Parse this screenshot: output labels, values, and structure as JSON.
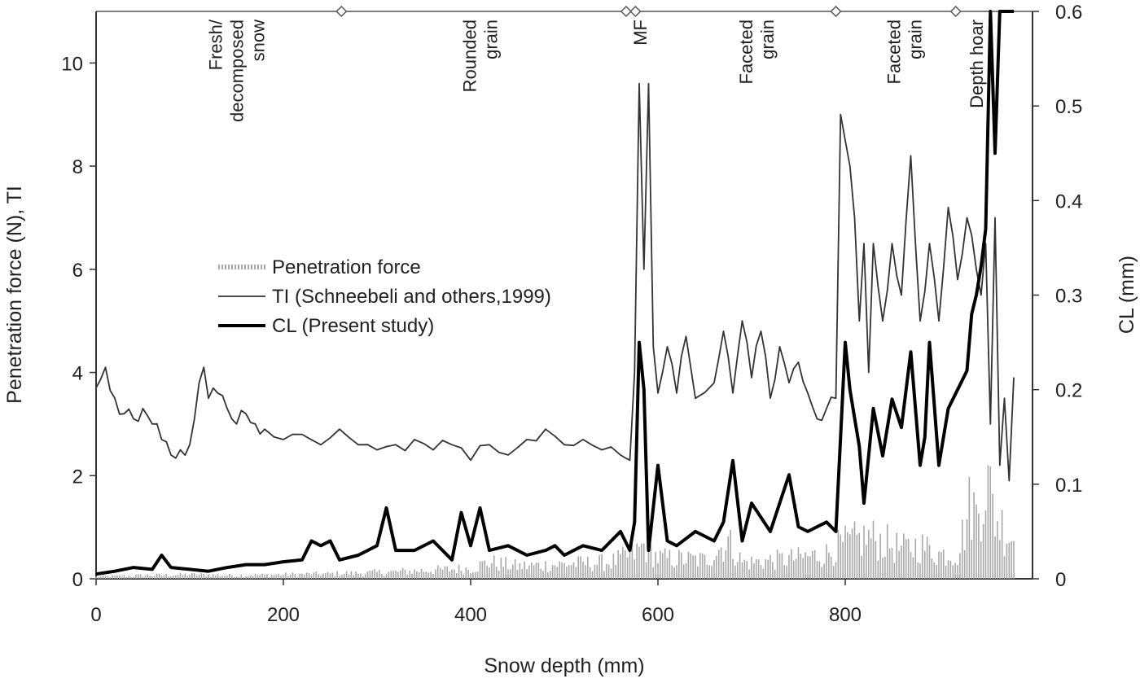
{
  "chart_data": {
    "type": "line",
    "title": "",
    "xlabel": "Snow depth (mm)",
    "ylabel_left": "Penetration force (N), TI",
    "ylabel_right": "CL (mm)",
    "xlim": [
      0,
      1000
    ],
    "ylim_left": [
      0,
      11
    ],
    "ylim_right": [
      0,
      0.6
    ],
    "x_ticks": [
      0,
      200,
      400,
      600,
      800
    ],
    "y_left_ticks": [
      0,
      2,
      4,
      6,
      8,
      10
    ],
    "y_right_ticks": [
      "0",
      "0.1",
      "0.2",
      "0.3",
      "0.4",
      "0.5",
      "0.6"
    ],
    "grid": false,
    "legend_position": "center-left",
    "layer_boundaries": [
      262,
      566,
      576,
      790,
      918
    ],
    "layer_labels": [
      {
        "lines": [
          "Fresh/",
          "decomposed",
          "snow"
        ],
        "x": 150
      },
      {
        "lines": [
          "Rounded",
          "grain"
        ],
        "x": 410
      },
      {
        "lines": [
          "MF"
        ],
        "x": 581
      },
      {
        "lines": [
          "Faceted",
          "grain"
        ],
        "x": 705
      },
      {
        "lines": [
          "Faceted",
          "grain"
        ],
        "x": 863
      },
      {
        "lines": [
          "Depth hoar"
        ],
        "x": 940
      }
    ],
    "series": [
      {
        "name": "Penetration force",
        "axis": "left",
        "color": "#a8a8a8",
        "style": "dense-bars",
        "x": [
          0,
          50,
          100,
          150,
          200,
          250,
          300,
          350,
          400,
          420,
          450,
          500,
          550,
          575,
          585,
          600,
          650,
          675,
          690,
          700,
          750,
          780,
          795,
          810,
          825,
          840,
          860,
          880,
          900,
          920,
          935,
          940,
          950,
          960,
          970,
          980
        ],
        "y": [
          0.05,
          0.08,
          0.1,
          0.08,
          0.1,
          0.12,
          0.15,
          0.2,
          0.25,
          0.4,
          0.3,
          0.35,
          0.4,
          0.6,
          0.8,
          0.5,
          0.45,
          0.9,
          0.4,
          0.4,
          0.5,
          0.6,
          0.8,
          0.9,
          1.0,
          0.9,
          0.7,
          0.8,
          0.6,
          0.6,
          1.9,
          1.5,
          2.5,
          1.5,
          1.2,
          1.0
        ]
      },
      {
        "name": "TI (Schneebeli and others,1999)",
        "axis": "left",
        "color": "#333333",
        "style": "thin-line",
        "x": [
          0,
          10,
          20,
          30,
          40,
          50,
          60,
          70,
          80,
          90,
          100,
          110,
          115,
          120,
          130,
          140,
          150,
          160,
          170,
          180,
          200,
          220,
          240,
          260,
          280,
          300,
          320,
          340,
          360,
          380,
          400,
          420,
          440,
          460,
          480,
          500,
          520,
          540,
          560,
          570,
          575,
          580,
          585,
          590,
          595,
          600,
          610,
          620,
          630,
          640,
          660,
          670,
          680,
          690,
          700,
          710,
          720,
          730,
          740,
          750,
          760,
          770,
          780,
          790,
          795,
          800,
          805,
          810,
          815,
          820,
          825,
          830,
          840,
          850,
          860,
          870,
          880,
          890,
          900,
          910,
          920,
          930,
          940,
          945,
          950,
          955,
          960,
          965,
          970,
          975,
          980
        ],
        "y": [
          3.7,
          4.1,
          3.5,
          3.2,
          3.1,
          3.3,
          3.0,
          2.7,
          2.4,
          2.5,
          2.6,
          3.8,
          4.1,
          3.5,
          3.6,
          3.3,
          3.0,
          3.2,
          3.0,
          2.9,
          2.7,
          2.8,
          2.6,
          2.9,
          2.6,
          2.5,
          2.6,
          2.7,
          2.5,
          2.6,
          2.3,
          2.6,
          2.4,
          2.7,
          2.9,
          2.6,
          2.7,
          2.5,
          2.4,
          2.3,
          4.0,
          9.6,
          6.0,
          9.6,
          4.5,
          3.6,
          4.5,
          3.6,
          4.7,
          3.5,
          3.8,
          4.8,
          3.6,
          5.0,
          3.9,
          4.8,
          3.5,
          4.5,
          3.8,
          4.2,
          3.6,
          3.1,
          3.3,
          3.5,
          9.0,
          8.5,
          8.0,
          7.0,
          5.0,
          6.5,
          4.0,
          6.5,
          5.0,
          6.5,
          5.5,
          8.2,
          5.0,
          6.5,
          5.0,
          7.2,
          5.8,
          7.0,
          6.0,
          5.5,
          6.5,
          3.0,
          7.0,
          2.2,
          3.5,
          1.9,
          3.9
        ]
      },
      {
        "name": "CL (Present study)",
        "axis": "right",
        "color": "#000000",
        "style": "thick-line",
        "x": [
          0,
          20,
          40,
          60,
          70,
          80,
          100,
          120,
          140,
          160,
          180,
          200,
          220,
          230,
          240,
          250,
          260,
          280,
          300,
          310,
          320,
          340,
          360,
          380,
          390,
          400,
          410,
          420,
          440,
          460,
          480,
          490,
          500,
          520,
          540,
          560,
          570,
          575,
          580,
          585,
          590,
          600,
          610,
          620,
          640,
          660,
          670,
          680,
          690,
          700,
          720,
          740,
          750,
          760,
          780,
          790,
          795,
          800,
          805,
          810,
          815,
          820,
          830,
          840,
          850,
          860,
          870,
          880,
          885,
          890,
          900,
          910,
          920,
          930,
          935,
          940,
          945,
          950,
          955,
          960,
          965,
          970,
          975,
          980
        ],
        "y": [
          0.005,
          0.008,
          0.012,
          0.01,
          0.025,
          0.012,
          0.01,
          0.008,
          0.012,
          0.015,
          0.015,
          0.018,
          0.02,
          0.04,
          0.035,
          0.04,
          0.02,
          0.025,
          0.035,
          0.075,
          0.03,
          0.03,
          0.04,
          0.02,
          0.07,
          0.035,
          0.075,
          0.03,
          0.035,
          0.025,
          0.03,
          0.035,
          0.025,
          0.035,
          0.03,
          0.05,
          0.03,
          0.06,
          0.25,
          0.2,
          0.03,
          0.12,
          0.04,
          0.035,
          0.05,
          0.04,
          0.06,
          0.125,
          0.04,
          0.08,
          0.05,
          0.11,
          0.055,
          0.05,
          0.06,
          0.05,
          0.15,
          0.25,
          0.2,
          0.17,
          0.14,
          0.08,
          0.18,
          0.13,
          0.19,
          0.16,
          0.24,
          0.12,
          0.15,
          0.25,
          0.12,
          0.18,
          0.2,
          0.22,
          0.28,
          0.3,
          0.33,
          0.37,
          0.6,
          0.45,
          0.6,
          0.6,
          0.6,
          0.6
        ]
      }
    ]
  }
}
